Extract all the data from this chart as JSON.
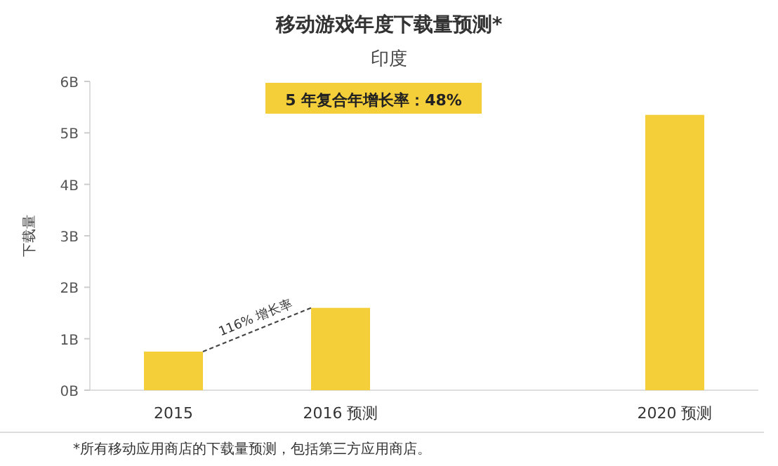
{
  "chart_data": {
    "type": "bar",
    "title": "移动游戏年度下载量预测*",
    "subtitle": "印度",
    "ylabel": "下载量",
    "categories": [
      "2015",
      "2016 预测",
      null,
      "2020 预测"
    ],
    "values": [
      0.75,
      1.6,
      null,
      5.35
    ],
    "color": "#f5cf3a",
    "ylim": [
      0,
      6
    ],
    "yticks": [
      {
        "value": 0,
        "label": "0B"
      },
      {
        "value": 1,
        "label": "1B"
      },
      {
        "value": 2,
        "label": "2B"
      },
      {
        "value": 3,
        "label": "3B"
      },
      {
        "value": 4,
        "label": "4B"
      },
      {
        "value": 5,
        "label": "5B"
      },
      {
        "value": 6,
        "label": "6B"
      }
    ],
    "annotations": [
      "5 年复合年增长率：48%",
      "116% 增长率",
      "*所有移动应用商店的下载量预测，包括第三方应用商店。"
    ]
  }
}
